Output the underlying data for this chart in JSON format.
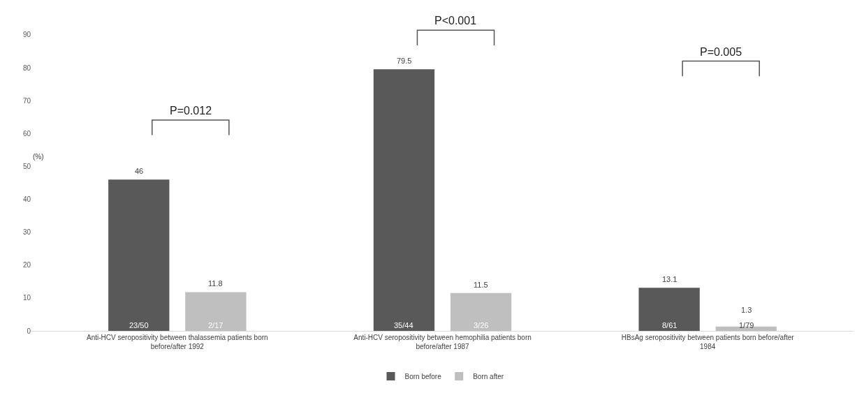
{
  "chart_data": {
    "type": "bar",
    "categories": [
      "Anti-HCV seropositivity between thalassemia patients born before/after 1992",
      "Anti-HCV seropositivity between hemophilia patients born before/after 1987",
      "HBsAg seropositivity between patients born before/after 1984"
    ],
    "series": [
      {
        "name": "Born before",
        "color": "#595959",
        "values": [
          46,
          79.5,
          13.1
        ]
      },
      {
        "name": "Born after",
        "color": "#bfbfbf",
        "values": [
          11.8,
          11.5,
          1.3
        ]
      }
    ],
    "ylabel": "(%)",
    "ylim": [
      0,
      90
    ],
    "yticks": [
      0,
      10,
      20,
      30,
      40,
      50,
      60,
      70,
      80,
      90
    ],
    "data_labels": true,
    "grid": false,
    "legend": "bottom",
    "annotations": [
      "P=0.012",
      "P<0.001",
      "P=0.005",
      "23/50",
      "2/17",
      "35/44",
      "3/26",
      "8/61",
      "1/79"
    ]
  }
}
